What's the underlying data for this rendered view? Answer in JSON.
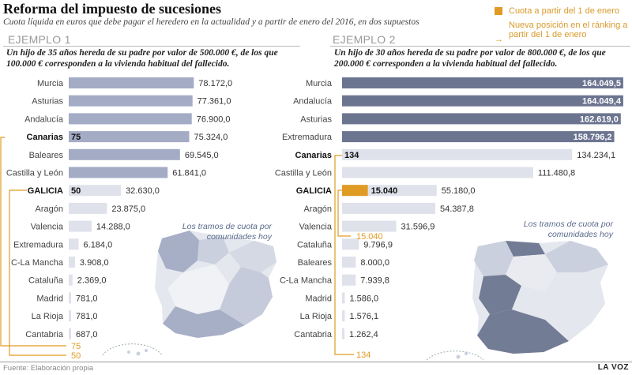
{
  "header": {
    "title": "Reforma del impuesto de sucesiones",
    "subtitle": "Cuota líquida en euros que debe pagar el heredero en la actualidad y a partir de enero del 2016, en dos supuestos"
  },
  "legend": {
    "current": "Cuota a partir del 1 de enero",
    "new_position": "Nueva posición en el ránking a partir del 1 de enero"
  },
  "map_label": "Los tramos de cuota por comunidades hoy",
  "footer": {
    "source": "Fuente: Elaboración propia",
    "brand": "LA VOZ"
  },
  "colors": {
    "light_bar": "#dfe2ea",
    "mid_bar": "#a3abc5",
    "dark_bar": "#6c7590",
    "accent": "#e09b24"
  },
  "chart_data": [
    {
      "type": "bar",
      "panel": "EJEMPLO 1",
      "case": "Un hijo de 35 años hereda de su padre por valor de 500.000 €, de los que 100.000 € corresponden a la vivienda habitual del fallecido.",
      "categories": [
        "Murcia",
        "Asturias",
        "Andalucía",
        "Canarias",
        "Baleares",
        "Castilla y León",
        "GALICIA",
        "Aragón",
        "Valencia",
        "Extremadura",
        "C-La Mancha",
        "Cataluña",
        "Madrid",
        "La Rioja",
        "Cantabria"
      ],
      "values": [
        78172.0,
        77361.0,
        76900.0,
        75324.0,
        69545.0,
        61841.0,
        32630.0,
        23875.0,
        14288.0,
        6184.0,
        3908.0,
        2369.0,
        781.0,
        781.0,
        687.0
      ],
      "value_labels": [
        "78.172,0",
        "77.361,0",
        "76.900,0",
        "75.324,0",
        "69.545,0",
        "61.841,0",
        "32.630,0",
        "23.875,0",
        "14.288,0",
        "6.184,0",
        "3.908,0",
        "2.369,0",
        "781,0",
        "781,0",
        "687,0"
      ],
      "highlights": [
        {
          "category": "Canarias",
          "new_value": 75,
          "new_label": "75",
          "new_position_label": "75"
        },
        {
          "category": "GALICIA",
          "new_value": 50,
          "new_label": "50",
          "new_position_label": "50"
        }
      ],
      "xlim": [
        0,
        80000
      ]
    },
    {
      "type": "bar",
      "panel": "EJEMPLO 2",
      "case": "Un hijo de 30 años hereda de su padre por valor de 800.000 €, de los que 200.000 € corresponden a la vivienda habitual del fallecido.",
      "categories": [
        "Murcia",
        "Andalucía",
        "Asturias",
        "Extremadura",
        "Canarias",
        "Castilla y León",
        "GALICIA",
        "Aragón",
        "Valencia",
        "Cataluña",
        "Baleares",
        "C-La Mancha",
        "Madrid",
        "La Rioja",
        "Cantabria"
      ],
      "values": [
        164049.5,
        164049.4,
        162619.0,
        158796.2,
        134234.1,
        111480.8,
        55180.0,
        54387.8,
        31596.9,
        9796.9,
        8000.0,
        7939.8,
        1586.0,
        1576.1,
        1262.4
      ],
      "value_labels": [
        "164.049,5",
        "164.049,4",
        "162.619,0",
        "158.796,2",
        "134.234,1",
        "111.480,8",
        "55.180,0",
        "54.387,8",
        "31.596,9",
        "9.796,9",
        "8.000,0",
        "7.939,8",
        "1.586,0",
        "1.576,1",
        "1.262,4"
      ],
      "highlights": [
        {
          "category": "Canarias",
          "new_value": 134,
          "new_label": "134",
          "new_position_label": "134"
        },
        {
          "category": "GALICIA",
          "new_value": 15040,
          "new_label": "15.040",
          "new_position_label": "15.040"
        }
      ],
      "xlim": [
        0,
        165000
      ]
    }
  ]
}
